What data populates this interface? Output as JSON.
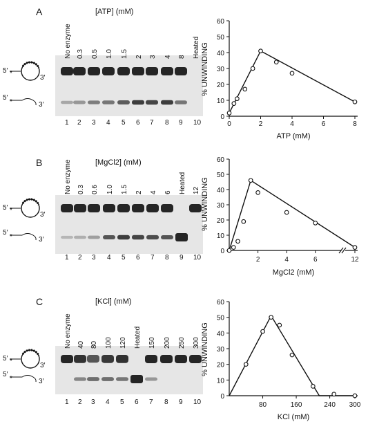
{
  "panels": [
    {
      "letter": "A",
      "header": "[ATP]  (mM)",
      "lane_labels": [
        "No enzyme",
        "0.3",
        "0.5",
        "1.0",
        "1.5",
        "2",
        "3",
        "4",
        "8",
        "Heated"
      ],
      "lane_numbers": [
        "1",
        "2",
        "3",
        "4",
        "5",
        "6",
        "7",
        "8",
        "9",
        "10"
      ],
      "substrate_label": "5′",
      "substrate_label_3": "3′",
      "product_label": "5′",
      "product_label_3": "3′"
    },
    {
      "letter": "B",
      "header": "[MgCl2]  (mM)",
      "lane_labels": [
        "No enzyme",
        "0.3",
        "0.6",
        "1.0",
        "1.5",
        "2",
        "4",
        "6",
        "Heated",
        "12"
      ],
      "lane_numbers": [
        "1",
        "2",
        "3",
        "4",
        "5",
        "6",
        "7",
        "8",
        "9",
        "10"
      ],
      "substrate_label": "5′",
      "substrate_label_3": "3′",
      "product_label": "5′",
      "product_label_3": "3′"
    },
    {
      "letter": "C",
      "header": "[KCl]  (mM)",
      "lane_labels": [
        "No enzyme",
        "40",
        "80",
        "100",
        "120",
        "Heated",
        "150",
        "200",
        "250",
        "300"
      ],
      "lane_numbers": [
        "1",
        "2",
        "3",
        "4",
        "5",
        "6",
        "7",
        "8",
        "9",
        "10"
      ],
      "substrate_label": "5′",
      "substrate_label_3": "3′",
      "product_label": "5′",
      "product_label_3": "3′"
    }
  ],
  "chart_data": [
    {
      "type": "scatter",
      "ylabel": "% UNWINDING",
      "xlabel": "ATP (mM)",
      "xlim": [
        0,
        8
      ],
      "ylim": [
        0,
        60
      ],
      "xticks": [
        "0",
        "2",
        "4",
        "6",
        "8"
      ],
      "yticks": [
        "0",
        "10",
        "20",
        "30",
        "40",
        "50",
        "60"
      ],
      "points": [
        [
          0,
          2
        ],
        [
          0.3,
          8
        ],
        [
          0.5,
          11
        ],
        [
          1.0,
          17
        ],
        [
          1.5,
          30
        ],
        [
          2,
          41
        ],
        [
          3,
          34
        ],
        [
          4,
          27
        ],
        [
          8,
          9
        ]
      ],
      "fit_line": [
        [
          0,
          2
        ],
        [
          2,
          41
        ],
        [
          8,
          9
        ]
      ]
    },
    {
      "type": "scatter",
      "ylabel": "% UNWINDING",
      "xlabel": "MgCl2 (mM)",
      "xlim": [
        0,
        7.5
      ],
      "ylim": [
        0,
        60
      ],
      "xticks": [
        "2",
        "4",
        "6",
        "12"
      ],
      "yticks": [
        "0",
        "10",
        "20",
        "30",
        "40",
        "50",
        "60"
      ],
      "axis_break": true,
      "points": [
        [
          0,
          0
        ],
        [
          0.3,
          2
        ],
        [
          0.6,
          6
        ],
        [
          1.0,
          19
        ],
        [
          1.5,
          46
        ],
        [
          2,
          38
        ],
        [
          4,
          25
        ],
        [
          6,
          18
        ],
        [
          12,
          2
        ]
      ],
      "fit_line": [
        [
          0,
          0
        ],
        [
          1.5,
          46
        ],
        [
          12,
          2
        ]
      ]
    },
    {
      "type": "scatter",
      "ylabel": "% UNWINDING",
      "xlabel": "KCl (mM)",
      "xlim": [
        0,
        300
      ],
      "ylim": [
        0,
        60
      ],
      "xticks": [
        "80",
        "160",
        "240",
        "300"
      ],
      "yticks": [
        "0",
        "10",
        "20",
        "30",
        "40",
        "50",
        "60"
      ],
      "points": [
        [
          40,
          20
        ],
        [
          80,
          41
        ],
        [
          100,
          50
        ],
        [
          120,
          45
        ],
        [
          150,
          26
        ],
        [
          200,
          6
        ],
        [
          250,
          1
        ],
        [
          300,
          0
        ]
      ],
      "fit_line": [
        [
          0,
          0
        ],
        [
          100,
          51
        ],
        [
          215,
          0
        ],
        [
          300,
          0
        ]
      ]
    }
  ]
}
